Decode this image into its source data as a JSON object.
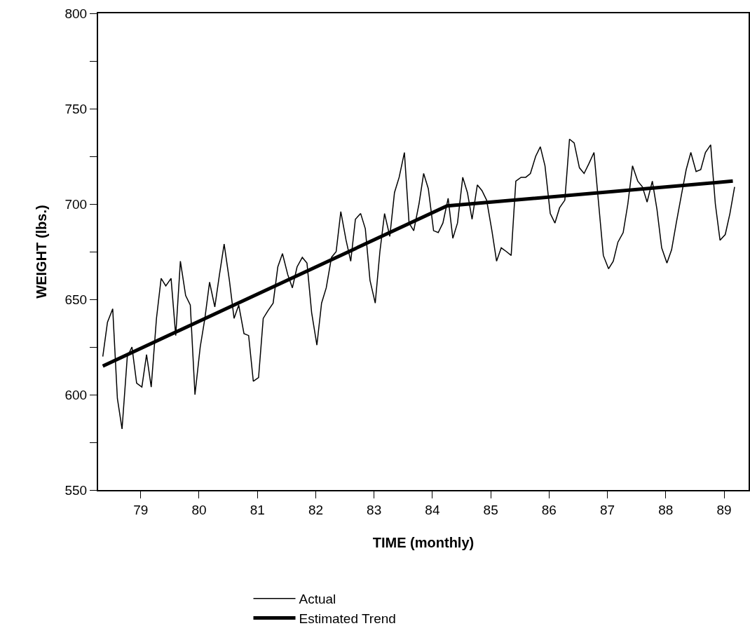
{
  "chart_data": {
    "type": "line",
    "xlabel": "TIME (monthly)",
    "ylabel": "WEIGHT (lbs.)",
    "xlim": [
      78.27,
      89.42
    ],
    "xticks": [
      79,
      80,
      81,
      82,
      83,
      84,
      85,
      86,
      87,
      88,
      89
    ],
    "ylim": [
      550,
      800
    ],
    "yticks": [
      550,
      {
        "value": 575,
        "label": null
      },
      600,
      {
        "value": 625,
        "label": null
      },
      650,
      {
        "value": 675,
        "label": null
      },
      700,
      {
        "value": 725,
        "label": null
      },
      750,
      {
        "value": 775,
        "label": null
      },
      800
    ],
    "grid": false,
    "legend": "bottom",
    "marker": "none",
    "line_style": "solid",
    "series": [
      {
        "name": "Actual",
        "color": "#000000",
        "x": [
          78.35,
          78.43,
          78.52,
          78.6,
          78.68,
          78.77,
          78.85,
          78.93,
          79.02,
          79.1,
          79.18,
          79.27,
          79.35,
          79.43,
          79.52,
          79.6,
          79.68,
          79.77,
          79.85,
          79.93,
          80.02,
          80.1,
          80.18,
          80.27,
          80.35,
          80.43,
          80.52,
          80.6,
          80.68,
          80.77,
          80.85,
          80.93,
          81.02,
          81.1,
          81.18,
          81.27,
          81.35,
          81.43,
          81.52,
          81.6,
          81.68,
          81.77,
          81.85,
          81.93,
          82.02,
          82.1,
          82.18,
          82.27,
          82.35,
          82.43,
          82.52,
          82.6,
          82.68,
          82.77,
          82.85,
          82.93,
          83.02,
          83.1,
          83.18,
          83.27,
          83.35,
          83.43,
          83.52,
          83.6,
          83.68,
          83.77,
          83.85,
          83.93,
          84.02,
          84.1,
          84.18,
          84.27,
          84.35,
          84.43,
          84.52,
          84.6,
          84.68,
          84.77,
          84.85,
          84.93,
          85.02,
          85.1,
          85.18,
          85.27,
          85.35,
          85.43,
          85.52,
          85.6,
          85.68,
          85.77,
          85.85,
          85.93,
          86.02,
          86.1,
          86.18,
          86.27,
          86.35,
          86.43,
          86.52,
          86.6,
          86.68,
          86.77,
          86.85,
          86.93,
          87.02,
          87.1,
          87.18,
          87.27,
          87.35,
          87.43,
          87.52,
          87.6,
          87.68,
          87.77,
          87.85,
          87.93,
          88.02,
          88.1,
          88.18,
          88.27,
          88.35,
          88.43,
          88.52,
          88.6,
          88.68,
          88.77,
          88.85,
          88.93,
          89.02,
          89.1,
          89.18
        ],
        "values": [
          620,
          638,
          645,
          598,
          582,
          620,
          625,
          606,
          604,
          621,
          604,
          640,
          661,
          657,
          661,
          631,
          670,
          652,
          647,
          600,
          625,
          640,
          659,
          646,
          663,
          679,
          660,
          640,
          647,
          632,
          631,
          607,
          609,
          640,
          644,
          648,
          667,
          674,
          663,
          656,
          667,
          672,
          669,
          643,
          626,
          648,
          656,
          672,
          675,
          696,
          681,
          670,
          692,
          695,
          687,
          660,
          648,
          675,
          695,
          683,
          706,
          714,
          727,
          690,
          686,
          700,
          716,
          708,
          686,
          685,
          690,
          703,
          682,
          690,
          714,
          706,
          692,
          710,
          707,
          702,
          686,
          670,
          677,
          675,
          673,
          712,
          714,
          714,
          716,
          725,
          730,
          720,
          695,
          690,
          698,
          702,
          734,
          732,
          719,
          716,
          721,
          727,
          700,
          673,
          666,
          670,
          680,
          685,
          700,
          720,
          712,
          709,
          701,
          712,
          697,
          677,
          669,
          676,
          690,
          705,
          718,
          727,
          717,
          718,
          727,
          731,
          700,
          681,
          684,
          695,
          709
        ]
      },
      {
        "name": "Estimated Trend",
        "color": "#000000",
        "x": [
          78.35,
          84.25,
          89.15
        ],
        "values": [
          615,
          699,
          712
        ]
      }
    ]
  }
}
